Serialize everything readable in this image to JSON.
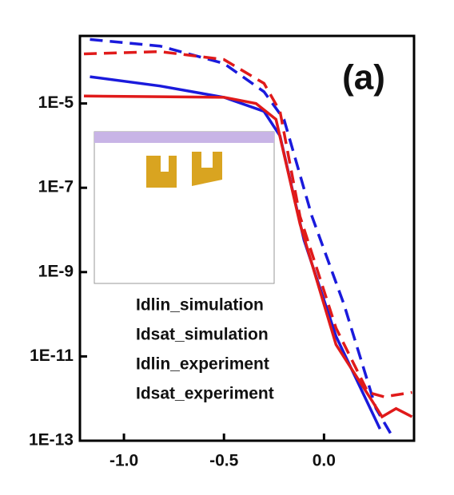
{
  "chart_data": {
    "type": "line",
    "log_y": true,
    "annotation": "(a)",
    "xlim": [
      -1.22,
      0.45
    ],
    "ylim": [
      1e-13,
      0.0004
    ],
    "xticks": [
      {
        "value": -1,
        "label": "-1.0"
      },
      -0.5,
      {
        "value": 0,
        "label": "0.0"
      }
    ],
    "yticks": [
      {
        "value": 1e-05,
        "label": "1E-5"
      },
      {
        "value": 1e-07,
        "label": "1E-7"
      },
      {
        "value": 1e-09,
        "label": "1E-9"
      },
      {
        "value": 1e-11,
        "label": "1E-11"
      },
      {
        "value": 1e-13,
        "label": "1E-13"
      }
    ],
    "series": [
      {
        "name": "Idlin_simulation",
        "color": "#1a1adc",
        "dash": false,
        "x": [
          -1.17,
          -0.82,
          -0.5,
          -0.3,
          -0.22,
          -0.1,
          0.06,
          0.28
        ],
        "values": [
          4.3e-05,
          2.6e-05,
          1.4e-05,
          6.5e-06,
          1.7e-06,
          5.8e-09,
          3e-11,
          1.9e-13
        ]
      },
      {
        "name": "Idsat_simulation",
        "color": "#1a1adc",
        "dash": true,
        "x": [
          -1.17,
          -0.82,
          -0.5,
          -0.3,
          -0.2,
          -0.06,
          0.1,
          0.26,
          0.34
        ],
        "values": [
          0.00033,
          0.00023,
          8.9e-05,
          1.9e-05,
          4.2e-06,
          2.1e-08,
          1.7e-10,
          5.8e-13,
          1.3e-13
        ]
      },
      {
        "name": "Idlin_experiment",
        "color": "#e01a1a",
        "dash": false,
        "x": [
          -1.2,
          -0.5,
          -0.34,
          -0.24,
          -0.12,
          0.06,
          0.24,
          0.29,
          0.36,
          0.44
        ],
        "values": [
          1.5e-05,
          1.4e-05,
          1e-05,
          4.2e-06,
          1.4e-08,
          1.9e-11,
          8.9e-13,
          3.7e-13,
          5.8e-13,
          3.7e-13
        ]
      },
      {
        "name": "Idsat_experiment",
        "color": "#e01a1a",
        "dash": true,
        "x": [
          -1.2,
          -0.82,
          -0.5,
          -0.3,
          -0.22,
          -0.12,
          0.06,
          0.22,
          0.3,
          0.44
        ],
        "values": [
          0.00015,
          0.00017,
          0.00011,
          3e-05,
          6.5e-06,
          2.1e-08,
          4.7e-11,
          1.4e-12,
          1.1e-12,
          1.4e-12
        ]
      }
    ]
  }
}
